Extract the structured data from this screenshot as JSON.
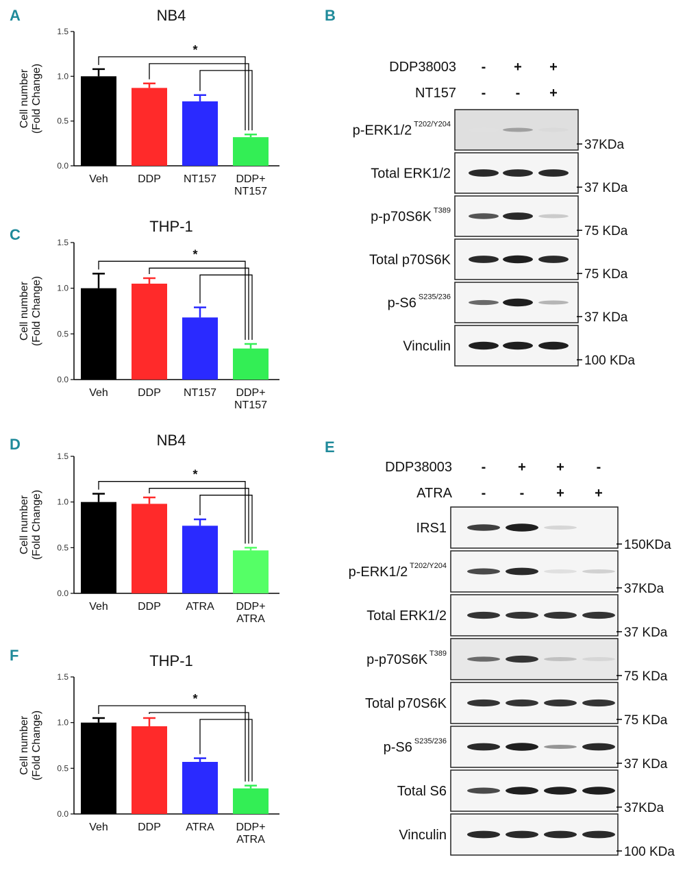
{
  "panels": {
    "A": "A",
    "B": "B",
    "C": "C",
    "D": "D",
    "E": "E",
    "F": "F"
  },
  "chart_data": [
    {
      "id": "A",
      "type": "bar",
      "title": "NB4",
      "ylabel": [
        "Cell number",
        "(Fold Change)"
      ],
      "categories": [
        [
          "Veh"
        ],
        [
          "DDP"
        ],
        [
          "NT157"
        ],
        [
          "DDP+",
          "NT157"
        ]
      ],
      "values": [
        1.0,
        0.87,
        0.72,
        0.32
      ],
      "errors": [
        0.08,
        0.05,
        0.07,
        0.03
      ],
      "colors": [
        "#000000",
        "#ff2a2a",
        "#2a2aff",
        "#33ee55"
      ],
      "ylim": [
        0,
        1.5
      ],
      "yticks": [
        "0.0",
        "0.5",
        "1.0",
        "1.5"
      ],
      "significance": "*"
    },
    {
      "id": "C",
      "type": "bar",
      "title": "THP-1",
      "ylabel": [
        "Cell number",
        "(Fold Change)"
      ],
      "categories": [
        [
          "Veh"
        ],
        [
          "DDP"
        ],
        [
          "NT157"
        ],
        [
          "DDP+",
          "NT157"
        ]
      ],
      "values": [
        1.0,
        1.05,
        0.68,
        0.34
      ],
      "errors": [
        0.16,
        0.06,
        0.11,
        0.05
      ],
      "colors": [
        "#000000",
        "#ff2a2a",
        "#2a2aff",
        "#33ee55"
      ],
      "ylim": [
        0,
        1.5
      ],
      "yticks": [
        "0.0",
        "0.5",
        "1.0",
        "1.5"
      ],
      "significance": "*"
    },
    {
      "id": "D",
      "type": "bar",
      "title": "NB4",
      "ylabel": [
        "Cell number",
        "(Fold Change)"
      ],
      "categories": [
        [
          "Veh"
        ],
        [
          "DDP"
        ],
        [
          "ATRA"
        ],
        [
          "DDP+",
          "ATRA"
        ]
      ],
      "values": [
        1.0,
        0.98,
        0.74,
        0.47
      ],
      "errors": [
        0.09,
        0.07,
        0.07,
        0.03
      ],
      "colors": [
        "#000000",
        "#ff2a2a",
        "#2a2aff",
        "#55ff66"
      ],
      "ylim": [
        0,
        1.5
      ],
      "yticks": [
        "0.0",
        "0.5",
        "1.0",
        "1.5"
      ],
      "significance": "*"
    },
    {
      "id": "F",
      "type": "bar",
      "title": "THP-1",
      "ylabel": [
        "Cell number",
        "(Fold Change)"
      ],
      "categories": [
        [
          "Veh"
        ],
        [
          "DDP"
        ],
        [
          "ATRA"
        ],
        [
          "DDP+",
          "ATRA"
        ]
      ],
      "values": [
        1.0,
        0.96,
        0.57,
        0.28
      ],
      "errors": [
        0.05,
        0.09,
        0.04,
        0.03
      ],
      "colors": [
        "#000000",
        "#ff2a2a",
        "#2a2aff",
        "#33ee55"
      ],
      "ylim": [
        0,
        1.5
      ],
      "yticks": [
        "0.0",
        "0.5",
        "1.0",
        "1.5"
      ],
      "significance": "*"
    }
  ],
  "blots": {
    "B": {
      "treatments": [
        {
          "name": "DDP38003",
          "signs": [
            "-",
            "+",
            "+"
          ]
        },
        {
          "name": "NT157",
          "signs": [
            "-",
            "-",
            "+"
          ]
        }
      ],
      "rows": [
        {
          "label": "p-ERK1/2",
          "sup": "T202/Y204",
          "mw": "37KDa",
          "bands": [
            0.05,
            0.35,
            0.08
          ],
          "bg": 0.25
        },
        {
          "label": "Total ERK1/2",
          "sup": "",
          "mw": "37 KDa",
          "bands": [
            0.9,
            0.9,
            0.9
          ],
          "bg": 0.0
        },
        {
          "label": "p-p70S6K",
          "sup": "T389",
          "mw": "75 KDa",
          "bands": [
            0.7,
            0.9,
            0.15
          ],
          "bg": 0.0
        },
        {
          "label": "Total p70S6K",
          "sup": "",
          "mw": "75 KDa",
          "bands": [
            0.9,
            0.95,
            0.9
          ],
          "bg": 0.0
        },
        {
          "label": "p-S6",
          "sup": "S235/236",
          "mw": "37 KDa",
          "bands": [
            0.6,
            0.95,
            0.25
          ],
          "bg": 0.0
        },
        {
          "label": "Vinculin",
          "sup": "",
          "mw": "100 KDa",
          "bands": [
            0.95,
            0.95,
            0.95
          ],
          "bg": 0.0
        }
      ]
    },
    "E": {
      "treatments": [
        {
          "name": "DDP38003",
          "signs": [
            "-",
            "+",
            "+",
            "-"
          ]
        },
        {
          "name": "ATRA",
          "signs": [
            "-",
            "-",
            "+",
            "+"
          ]
        }
      ],
      "rows": [
        {
          "label": "IRS1",
          "sup": "",
          "mw": "150KDa",
          "bands": [
            0.8,
            0.95,
            0.1,
            0.0
          ],
          "bg": 0.0
        },
        {
          "label": "p-ERK1/2",
          "sup": "T202/Y204",
          "mw": "37KDa",
          "bands": [
            0.75,
            0.9,
            0.05,
            0.12
          ],
          "bg": 0.0
        },
        {
          "label": "Total ERK1/2",
          "sup": "",
          "mw": "37 KDa",
          "bands": [
            0.85,
            0.85,
            0.85,
            0.85
          ],
          "bg": 0.0
        },
        {
          "label": "p-p70S6K",
          "sup": "T389",
          "mw": "75 KDa",
          "bands": [
            0.6,
            0.85,
            0.2,
            0.1
          ],
          "bg": 0.15
        },
        {
          "label": "Total p70S6K",
          "sup": "",
          "mw": "75 KDa",
          "bands": [
            0.85,
            0.85,
            0.85,
            0.85
          ],
          "bg": 0.0
        },
        {
          "label": "p-S6",
          "sup": "S235/236",
          "mw": "37 KDa",
          "bands": [
            0.9,
            0.95,
            0.4,
            0.9
          ],
          "bg": 0.0
        },
        {
          "label": "Total S6",
          "sup": "",
          "mw": "37KDa",
          "bands": [
            0.75,
            0.95,
            0.95,
            0.95
          ],
          "bg": 0.0
        },
        {
          "label": "Vinculin",
          "sup": "",
          "mw": "100 KDa",
          "bands": [
            0.9,
            0.9,
            0.9,
            0.9
          ],
          "bg": 0.0
        }
      ]
    }
  }
}
